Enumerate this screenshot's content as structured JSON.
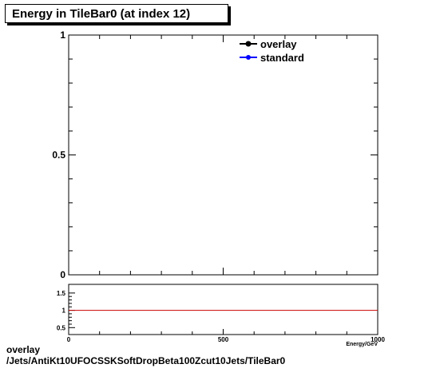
{
  "title": "Energy in TileBar0 (at index 12)",
  "footer": {
    "line1": "overlay",
    "line2": "/Jets/AntiKt10UFOCSSKSoftDropBeta100Zcut10Jets/TileBar0"
  },
  "colors": {
    "overlay": "#000000",
    "standard": "#0000ff",
    "ratio_line": "#cc0000"
  },
  "chart_data": [
    {
      "type": "line",
      "title": "Energy in TileBar0 (at index 12)",
      "xlabel": "Energy/GeV",
      "ylabel": "",
      "xlim": [
        0,
        1000
      ],
      "ylim": [
        0,
        1
      ],
      "yticks": [
        {
          "value": 0,
          "label": "0"
        },
        {
          "value": 0.5,
          "label": "0.5"
        },
        {
          "value": 1,
          "label": "1"
        }
      ],
      "legend": {
        "placement": "top-right",
        "entries": [
          "overlay",
          "standard"
        ]
      },
      "series": [
        {
          "name": "overlay",
          "x": [],
          "y": []
        },
        {
          "name": "standard",
          "x": [],
          "y": []
        }
      ],
      "grid": false
    },
    {
      "type": "line",
      "xlabel": "Energy/GeV",
      "xlim": [
        0,
        1000
      ],
      "ylim": [
        0.3,
        1.75
      ],
      "xticks": [
        {
          "value": 0,
          "label": "0"
        },
        {
          "value": 500,
          "label": "500"
        },
        {
          "value": 1000,
          "label": "1000"
        }
      ],
      "yticks": [
        {
          "value": 0.5,
          "label": "0.5"
        },
        {
          "value": 1,
          "label": "1"
        },
        {
          "value": 1.5,
          "label": "1.5"
        }
      ],
      "reference_line": 1,
      "grid": false
    }
  ]
}
